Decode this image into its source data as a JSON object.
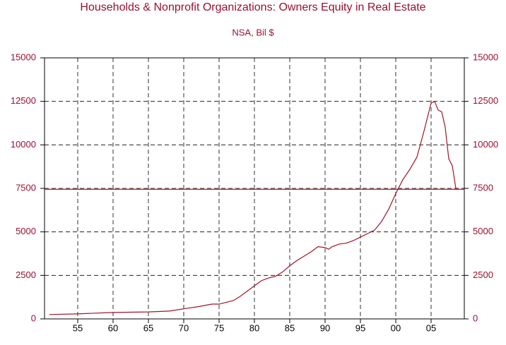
{
  "chart_data": {
    "type": "line",
    "title": "Households & Nonprofit Organizations: Owners Equity in Real Estate",
    "subtitle": "NSA, Bil $",
    "x": [
      1951,
      1955,
      1960,
      1965,
      1968,
      1970,
      1972,
      1974,
      1975,
      1976,
      1977,
      1978,
      1979,
      1980,
      1981,
      1982,
      1983,
      1984,
      1985,
      1986,
      1987,
      1988,
      1989,
      1990,
      1990.5,
      1991,
      1992,
      1993,
      1994,
      1995,
      1996,
      1997,
      1998,
      1999,
      2000,
      2001,
      2002,
      2003,
      2004,
      2005,
      2005.5,
      2006,
      2006.5,
      2007,
      2007.5,
      2008,
      2008.5,
      2008.8
    ],
    "series": [
      {
        "color": "#a0142a",
        "values": [
          250,
          290,
          370,
          400,
          450,
          580,
          700,
          850,
          850,
          950,
          1050,
          1300,
          1600,
          1900,
          2200,
          2350,
          2450,
          2700,
          3050,
          3350,
          3600,
          3850,
          4150,
          4100,
          4000,
          4150,
          4300,
          4350,
          4500,
          4700,
          4900,
          5100,
          5600,
          6300,
          7200,
          8000,
          8600,
          9300,
          10800,
          12400,
          12500,
          12000,
          11900,
          11000,
          9200,
          8800,
          7500,
          7450
        ]
      }
    ],
    "reference_line": 7450,
    "xlim": [
      1950.3,
      2009.7
    ],
    "xticks": [
      {
        "value": 1955,
        "label": "55"
      },
      {
        "value": 1960,
        "label": "60"
      },
      {
        "value": 1965,
        "label": "65"
      },
      {
        "value": 1970,
        "label": "70"
      },
      {
        "value": 1975,
        "label": "75"
      },
      {
        "value": 1980,
        "label": "80"
      },
      {
        "value": 1985,
        "label": "85"
      },
      {
        "value": 1990,
        "label": "90"
      },
      {
        "value": 1995,
        "label": "95"
      },
      {
        "value": 2000,
        "label": "00"
      },
      {
        "value": 2005,
        "label": "05"
      }
    ],
    "ylim": [
      0,
      15000
    ],
    "yticks": [
      0,
      2500,
      5000,
      7500,
      10000,
      12500,
      15000
    ],
    "grid": true
  }
}
